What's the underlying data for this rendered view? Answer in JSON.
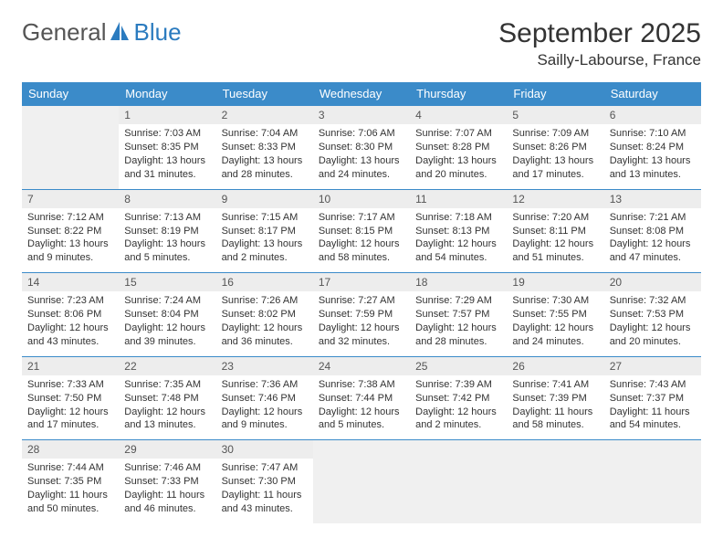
{
  "logo": {
    "text1": "General",
    "text2": "Blue",
    "icon_color": "#2b7bbf"
  },
  "title": "September 2025",
  "location": "Sailly-Labourse, France",
  "colors": {
    "header_bg": "#3b8bc9",
    "header_fg": "#ffffff",
    "cell_border": "#3b8bc9",
    "daynum_bg": "#ededed",
    "empty_bg": "#f0f0f0",
    "text": "#333333"
  },
  "day_names": [
    "Sunday",
    "Monday",
    "Tuesday",
    "Wednesday",
    "Thursday",
    "Friday",
    "Saturday"
  ],
  "weeks": [
    [
      null,
      {
        "n": "1",
        "sr": "7:03 AM",
        "ss": "8:35 PM",
        "dl": "13 hours and 31 minutes."
      },
      {
        "n": "2",
        "sr": "7:04 AM",
        "ss": "8:33 PM",
        "dl": "13 hours and 28 minutes."
      },
      {
        "n": "3",
        "sr": "7:06 AM",
        "ss": "8:30 PM",
        "dl": "13 hours and 24 minutes."
      },
      {
        "n": "4",
        "sr": "7:07 AM",
        "ss": "8:28 PM",
        "dl": "13 hours and 20 minutes."
      },
      {
        "n": "5",
        "sr": "7:09 AM",
        "ss": "8:26 PM",
        "dl": "13 hours and 17 minutes."
      },
      {
        "n": "6",
        "sr": "7:10 AM",
        "ss": "8:24 PM",
        "dl": "13 hours and 13 minutes."
      }
    ],
    [
      {
        "n": "7",
        "sr": "7:12 AM",
        "ss": "8:22 PM",
        "dl": "13 hours and 9 minutes."
      },
      {
        "n": "8",
        "sr": "7:13 AM",
        "ss": "8:19 PM",
        "dl": "13 hours and 5 minutes."
      },
      {
        "n": "9",
        "sr": "7:15 AM",
        "ss": "8:17 PM",
        "dl": "13 hours and 2 minutes."
      },
      {
        "n": "10",
        "sr": "7:17 AM",
        "ss": "8:15 PM",
        "dl": "12 hours and 58 minutes."
      },
      {
        "n": "11",
        "sr": "7:18 AM",
        "ss": "8:13 PM",
        "dl": "12 hours and 54 minutes."
      },
      {
        "n": "12",
        "sr": "7:20 AM",
        "ss": "8:11 PM",
        "dl": "12 hours and 51 minutes."
      },
      {
        "n": "13",
        "sr": "7:21 AM",
        "ss": "8:08 PM",
        "dl": "12 hours and 47 minutes."
      }
    ],
    [
      {
        "n": "14",
        "sr": "7:23 AM",
        "ss": "8:06 PM",
        "dl": "12 hours and 43 minutes."
      },
      {
        "n": "15",
        "sr": "7:24 AM",
        "ss": "8:04 PM",
        "dl": "12 hours and 39 minutes."
      },
      {
        "n": "16",
        "sr": "7:26 AM",
        "ss": "8:02 PM",
        "dl": "12 hours and 36 minutes."
      },
      {
        "n": "17",
        "sr": "7:27 AM",
        "ss": "7:59 PM",
        "dl": "12 hours and 32 minutes."
      },
      {
        "n": "18",
        "sr": "7:29 AM",
        "ss": "7:57 PM",
        "dl": "12 hours and 28 minutes."
      },
      {
        "n": "19",
        "sr": "7:30 AM",
        "ss": "7:55 PM",
        "dl": "12 hours and 24 minutes."
      },
      {
        "n": "20",
        "sr": "7:32 AM",
        "ss": "7:53 PM",
        "dl": "12 hours and 20 minutes."
      }
    ],
    [
      {
        "n": "21",
        "sr": "7:33 AM",
        "ss": "7:50 PM",
        "dl": "12 hours and 17 minutes."
      },
      {
        "n": "22",
        "sr": "7:35 AM",
        "ss": "7:48 PM",
        "dl": "12 hours and 13 minutes."
      },
      {
        "n": "23",
        "sr": "7:36 AM",
        "ss": "7:46 PM",
        "dl": "12 hours and 9 minutes."
      },
      {
        "n": "24",
        "sr": "7:38 AM",
        "ss": "7:44 PM",
        "dl": "12 hours and 5 minutes."
      },
      {
        "n": "25",
        "sr": "7:39 AM",
        "ss": "7:42 PM",
        "dl": "12 hours and 2 minutes."
      },
      {
        "n": "26",
        "sr": "7:41 AM",
        "ss": "7:39 PM",
        "dl": "11 hours and 58 minutes."
      },
      {
        "n": "27",
        "sr": "7:43 AM",
        "ss": "7:37 PM",
        "dl": "11 hours and 54 minutes."
      }
    ],
    [
      {
        "n": "28",
        "sr": "7:44 AM",
        "ss": "7:35 PM",
        "dl": "11 hours and 50 minutes."
      },
      {
        "n": "29",
        "sr": "7:46 AM",
        "ss": "7:33 PM",
        "dl": "11 hours and 46 minutes."
      },
      {
        "n": "30",
        "sr": "7:47 AM",
        "ss": "7:30 PM",
        "dl": "11 hours and 43 minutes."
      },
      null,
      null,
      null,
      null
    ]
  ],
  "labels": {
    "sunrise": "Sunrise:",
    "sunset": "Sunset:",
    "daylight": "Daylight:"
  }
}
